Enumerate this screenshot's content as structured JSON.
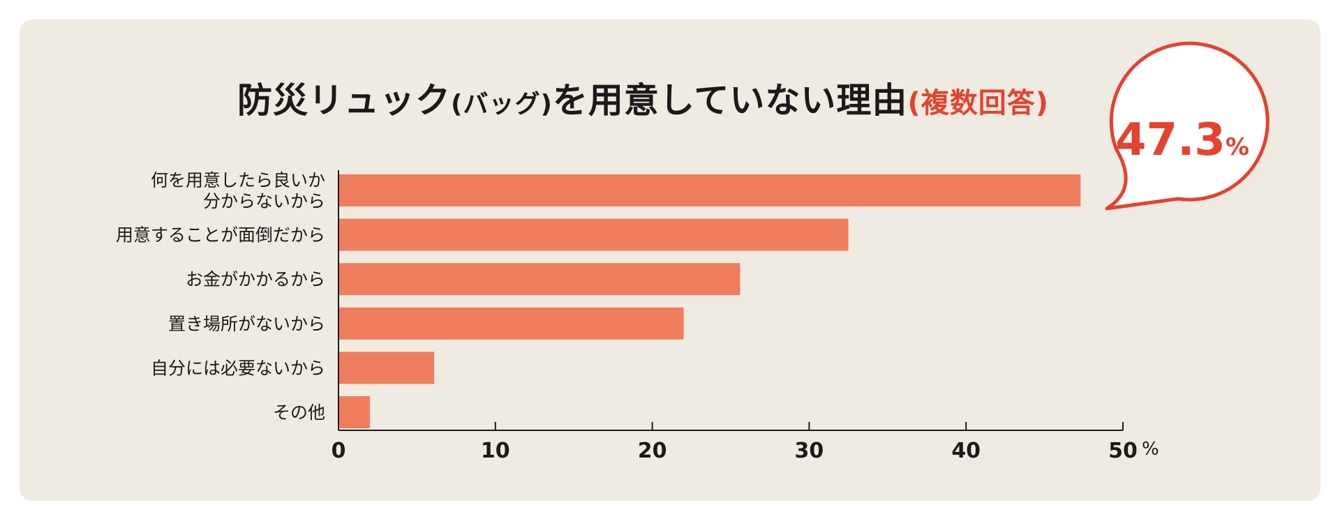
{
  "title": {
    "main_a": "防災リュック",
    "main_paren": "(バッグ)",
    "main_b": "を用意していない理由",
    "note": "(複数回答)"
  },
  "callout": {
    "value": "47.3",
    "unit": "%"
  },
  "colors": {
    "bar": "#f07e5e",
    "accent": "#e3432f",
    "background": "#f0ebe2",
    "axis": "#1a1a1a"
  },
  "chart_data": {
    "type": "bar",
    "orientation": "horizontal",
    "title": "防災リュック(バッグ)を用意していない理由(複数回答)",
    "categories": [
      [
        "何を用意したら良いか",
        "分からないから"
      ],
      [
        "用意することが面倒だから"
      ],
      [
        "お金がかかるから"
      ],
      [
        "置き場所がないから"
      ],
      [
        "自分には必要ないから"
      ],
      [
        "その他"
      ]
    ],
    "values": [
      47.3,
      32.5,
      25.6,
      22.0,
      6.1,
      2.0
    ],
    "xlim": [
      0,
      50
    ],
    "xticks": [
      "0",
      "10",
      "20",
      "30",
      "40",
      "50"
    ],
    "xunit": "%",
    "grid": false,
    "legend": "none"
  }
}
